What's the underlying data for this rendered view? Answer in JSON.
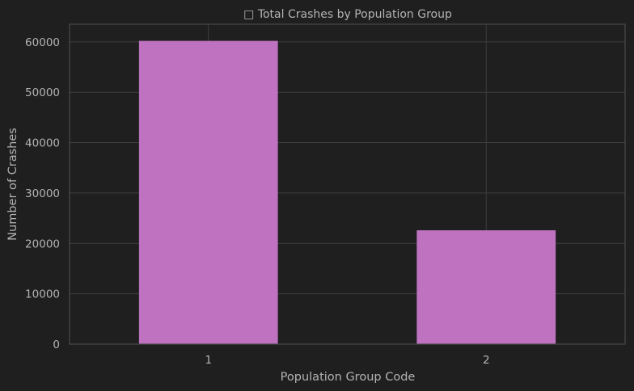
{
  "chart_data": {
    "type": "bar",
    "title": "□ Total Crashes by Population Group",
    "xlabel": "Population Group Code",
    "ylabel": "Number of Crashes",
    "categories": [
      "1",
      "2"
    ],
    "values": [
      60200,
      22600
    ],
    "ylim": [
      0,
      63500
    ],
    "yticks": [
      0,
      10000,
      20000,
      30000,
      40000,
      50000,
      60000
    ],
    "ytick_labels": [
      "0",
      "10000",
      "20000",
      "30000",
      "40000",
      "50000",
      "60000"
    ],
    "grid": true,
    "bar_color": "#bf72bf",
    "background_color": "#1f1f1f"
  }
}
